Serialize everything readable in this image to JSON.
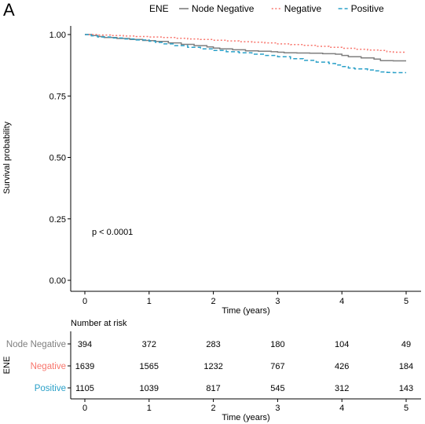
{
  "panel_label": "A",
  "chart_data": [
    {
      "type": "line",
      "subtype": "kaplan-meier",
      "legend_title": "ENE",
      "legend_position": "top",
      "xlabel": "Time (years)",
      "ylabel": "Survival probability",
      "xlim": [
        0,
        5
      ],
      "ylim": [
        0,
        1
      ],
      "x_ticks": [
        "0",
        "1",
        "2",
        "3",
        "4",
        "5"
      ],
      "y_ticks": [
        "0.00",
        "0.25",
        "0.50",
        "0.75",
        "1.00"
      ],
      "grid": false,
      "annotation": "p < 0.0001",
      "series": [
        {
          "name": "Node Negative",
          "color": "#7f7f7f",
          "dash": "solid",
          "x": [
            0,
            0.1,
            0.2,
            0.3,
            0.5,
            0.7,
            0.9,
            1.0,
            1.1,
            1.3,
            1.5,
            1.7,
            1.9,
            2.0,
            2.1,
            2.3,
            2.5,
            2.7,
            2.9,
            3.0,
            3.1,
            3.3,
            3.5,
            3.7,
            3.9,
            4.0,
            4.1,
            4.3,
            4.5,
            4.6,
            4.8,
            5.0
          ],
          "y": [
            1.0,
            0.996,
            0.992,
            0.988,
            0.984,
            0.98,
            0.976,
            0.975,
            0.972,
            0.966,
            0.96,
            0.955,
            0.95,
            0.945,
            0.942,
            0.938,
            0.934,
            0.932,
            0.93,
            0.928,
            0.926,
            0.925,
            0.924,
            0.922,
            0.92,
            0.915,
            0.91,
            0.905,
            0.9,
            0.894,
            0.893,
            0.893
          ]
        },
        {
          "name": "Negative",
          "color": "#f8766d",
          "dash": "dotted",
          "x": [
            0,
            0.2,
            0.4,
            0.6,
            0.8,
            1.0,
            1.2,
            1.4,
            1.6,
            1.8,
            2.0,
            2.2,
            2.4,
            2.6,
            2.8,
            3.0,
            3.2,
            3.4,
            3.6,
            3.8,
            4.0,
            4.2,
            4.4,
            4.6,
            4.7,
            4.8,
            5.0
          ],
          "y": [
            1.0,
            0.998,
            0.996,
            0.994,
            0.992,
            0.99,
            0.988,
            0.985,
            0.982,
            0.98,
            0.977,
            0.974,
            0.971,
            0.969,
            0.966,
            0.962,
            0.959,
            0.956,
            0.952,
            0.948,
            0.944,
            0.94,
            0.937,
            0.935,
            0.93,
            0.928,
            0.928
          ]
        },
        {
          "name": "Positive",
          "color": "#2aa0c8",
          "dash": "dashed",
          "x": [
            0,
            0.1,
            0.2,
            0.4,
            0.6,
            0.8,
            1.0,
            1.1,
            1.2,
            1.4,
            1.6,
            1.8,
            2.0,
            2.2,
            2.4,
            2.6,
            2.8,
            3.0,
            3.2,
            3.4,
            3.6,
            3.8,
            3.9,
            4.0,
            4.1,
            4.2,
            4.4,
            4.5,
            4.6,
            4.7,
            4.8,
            5.0
          ],
          "y": [
            1.0,
            0.995,
            0.99,
            0.986,
            0.982,
            0.978,
            0.973,
            0.968,
            0.962,
            0.955,
            0.948,
            0.942,
            0.935,
            0.93,
            0.926,
            0.92,
            0.915,
            0.91,
            0.902,
            0.895,
            0.888,
            0.882,
            0.876,
            0.87,
            0.864,
            0.86,
            0.856,
            0.852,
            0.848,
            0.846,
            0.845,
            0.845
          ]
        }
      ]
    },
    {
      "type": "table",
      "title": "Number at risk",
      "row_axis_label": "ENE",
      "xlabel": "Time (years)",
      "x_ticks": [
        "0",
        "1",
        "2",
        "3",
        "4",
        "5"
      ],
      "rows": [
        {
          "label": "Node Negative",
          "color": "#7f7f7f",
          "values": [
            "394",
            "372",
            "283",
            "180",
            "104",
            "49"
          ]
        },
        {
          "label": "Negative",
          "color": "#f8766d",
          "values": [
            "1639",
            "1565",
            "1232",
            "767",
            "426",
            "184"
          ]
        },
        {
          "label": "Positive",
          "color": "#2aa0c8",
          "values": [
            "1105",
            "1039",
            "817",
            "545",
            "312",
            "143"
          ]
        }
      ]
    }
  ]
}
